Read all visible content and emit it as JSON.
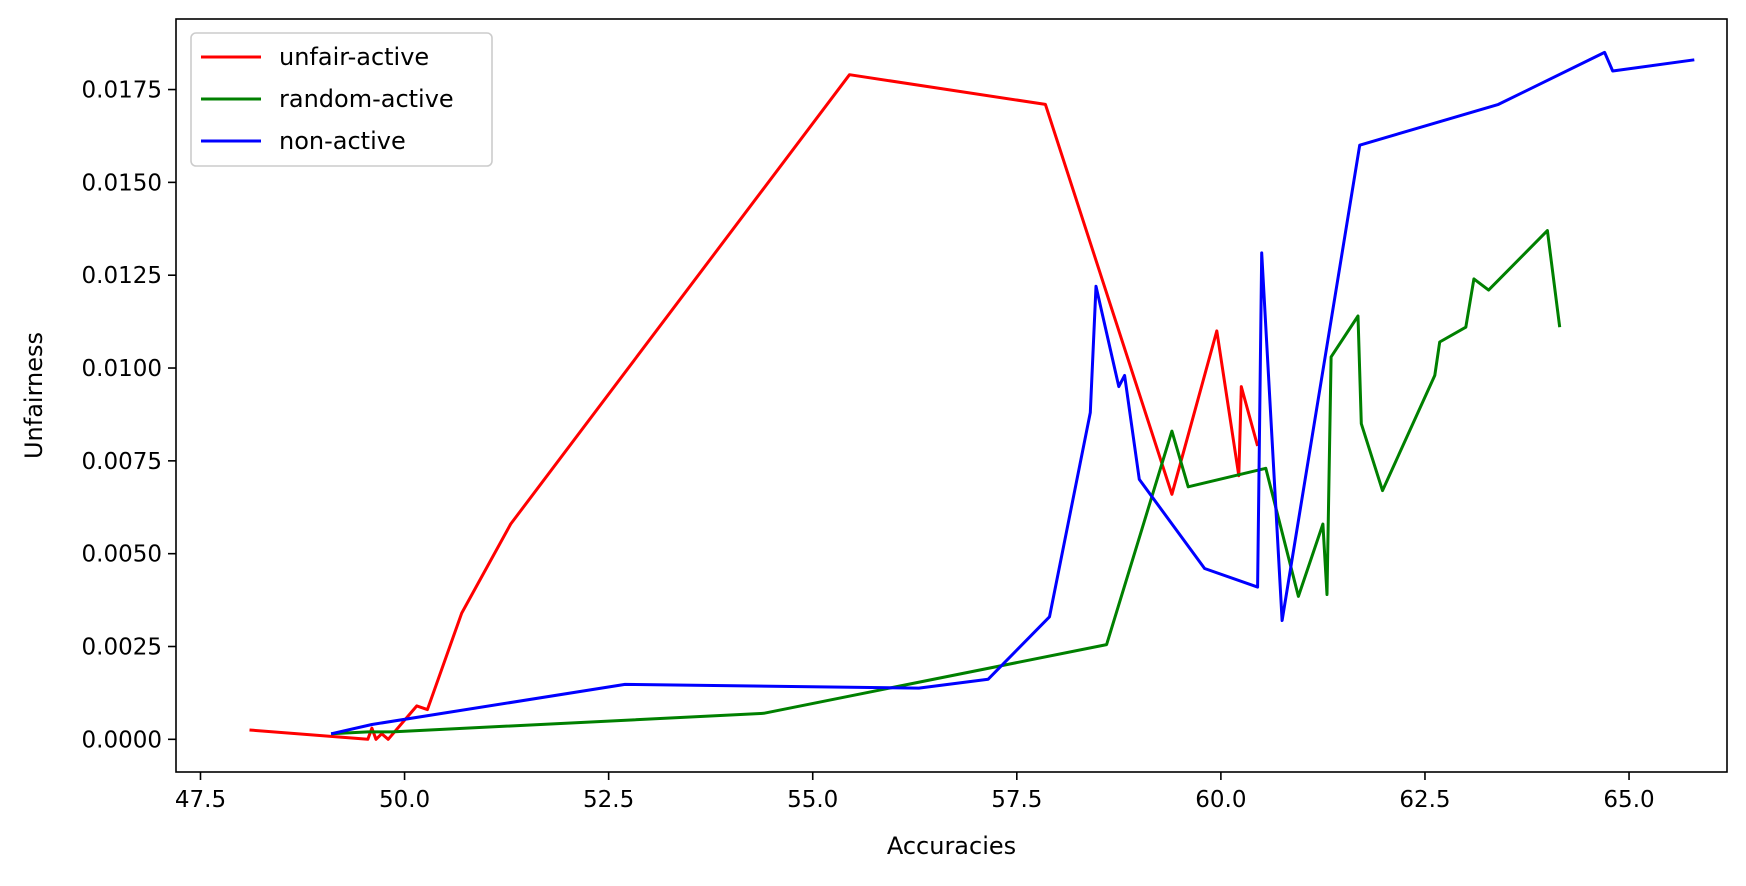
{
  "chart_data": {
    "type": "line",
    "title": "",
    "xlabel": "Accuracies",
    "ylabel": "Unfairness",
    "xlim": [
      47.2,
      66.2
    ],
    "ylim": [
      -0.00088,
      0.0194
    ],
    "xticks": [
      47.5,
      50.0,
      52.5,
      55.0,
      57.5,
      60.0,
      62.5,
      65.0
    ],
    "xtick_labels": [
      "47.5",
      "50.0",
      "52.5",
      "55.0",
      "57.5",
      "60.0",
      "62.5",
      "65.0"
    ],
    "yticks": [
      0.0,
      0.0025,
      0.005,
      0.0075,
      0.01,
      0.0125,
      0.015,
      0.0175
    ],
    "ytick_labels": [
      "0.0000",
      "0.0025",
      "0.0050",
      "0.0075",
      "0.0100",
      "0.0125",
      "0.0150",
      "0.0175"
    ],
    "grid": false,
    "legend_position": "top-left",
    "series": [
      {
        "name": "unfair-active",
        "color": "#ff0000",
        "x": [
          48.1,
          49.55,
          49.6,
          49.65,
          49.72,
          49.8,
          50.15,
          50.28,
          50.7,
          51.3,
          55.45,
          57.85,
          59.4,
          59.95,
          60.22,
          60.25,
          60.45
        ],
        "y": [
          0.00025,
          0.0,
          0.0003,
          0.0,
          0.00015,
          0.0,
          0.0009,
          0.0008,
          0.0034,
          0.0058,
          0.0179,
          0.0171,
          0.0066,
          0.011,
          0.0071,
          0.0095,
          0.0079
        ]
      },
      {
        "name": "random-active",
        "color": "#008000",
        "x": [
          49.1,
          49.55,
          49.85,
          54.4,
          58.6,
          59.4,
          59.6,
          60.55,
          60.95,
          61.25,
          61.3,
          61.35,
          61.68,
          61.72,
          61.98,
          62.62,
          62.68,
          63.0,
          63.1,
          63.28,
          64.0,
          64.15
        ],
        "y": [
          0.00015,
          0.0002,
          0.0002,
          0.0007,
          0.00255,
          0.0083,
          0.0068,
          0.0073,
          0.00385,
          0.0058,
          0.0039,
          0.0103,
          0.0114,
          0.0085,
          0.0067,
          0.0098,
          0.0107,
          0.0111,
          0.0124,
          0.0121,
          0.0137,
          0.0111
        ]
      },
      {
        "name": "non-active",
        "color": "#0000ff",
        "x": [
          49.1,
          49.6,
          52.7,
          56.3,
          57.15,
          57.9,
          58.4,
          58.47,
          58.75,
          58.82,
          59.0,
          59.8,
          60.45,
          60.5,
          60.75,
          61.7,
          63.4,
          64.7,
          64.8,
          65.8
        ],
        "y": [
          0.00015,
          0.0004,
          0.00148,
          0.00138,
          0.00162,
          0.0033,
          0.0088,
          0.0122,
          0.0095,
          0.0098,
          0.007,
          0.0046,
          0.0041,
          0.0131,
          0.0032,
          0.016,
          0.0171,
          0.0185,
          0.018,
          0.0183
        ]
      }
    ]
  }
}
